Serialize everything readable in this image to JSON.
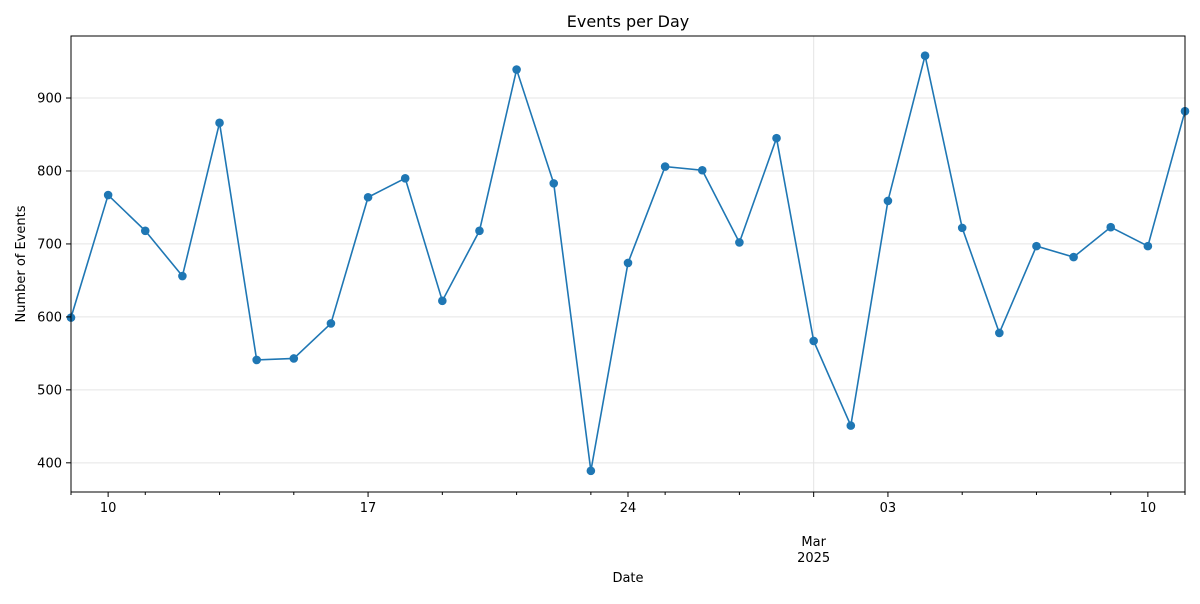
{
  "chart_data": {
    "type": "line",
    "title": "Events per Day",
    "xlabel": "Date",
    "ylabel": "Number of Events",
    "grid": true,
    "legend": "none",
    "color": "#1f77b4",
    "x": [
      "2025-02-09",
      "2025-02-10",
      "2025-02-11",
      "2025-02-12",
      "2025-02-13",
      "2025-02-14",
      "2025-02-15",
      "2025-02-16",
      "2025-02-17",
      "2025-02-18",
      "2025-02-19",
      "2025-02-20",
      "2025-02-21",
      "2025-02-22",
      "2025-02-23",
      "2025-02-24",
      "2025-02-25",
      "2025-02-26",
      "2025-02-27",
      "2025-02-28",
      "2025-03-01",
      "2025-03-02",
      "2025-03-03",
      "2025-03-04",
      "2025-03-05",
      "2025-03-06",
      "2025-03-07",
      "2025-03-08",
      "2025-03-09",
      "2025-03-10",
      "2025-03-11"
    ],
    "values": [
      599,
      767,
      718,
      656,
      866,
      541,
      543,
      591,
      764,
      790,
      622,
      718,
      939,
      783,
      389,
      674,
      806,
      801,
      702,
      845,
      567,
      451,
      759,
      958,
      722,
      578,
      697,
      682,
      723,
      697,
      882
    ],
    "xlim": [
      "2025-02-09",
      "2025-03-11"
    ],
    "ylim": [
      360,
      985
    ],
    "yticks": [
      400,
      500,
      600,
      700,
      800,
      900
    ],
    "xticks": [
      {
        "date": "2025-02-10",
        "label": "10"
      },
      {
        "date": "2025-02-17",
        "label": "17"
      },
      {
        "date": "2025-02-24",
        "label": "24"
      },
      {
        "date": "2025-03-03",
        "label": "03"
      },
      {
        "date": "2025-03-10",
        "label": "10"
      }
    ],
    "month_label": {
      "date": "2025-03-01",
      "month": "Mar",
      "year": "2025"
    }
  }
}
